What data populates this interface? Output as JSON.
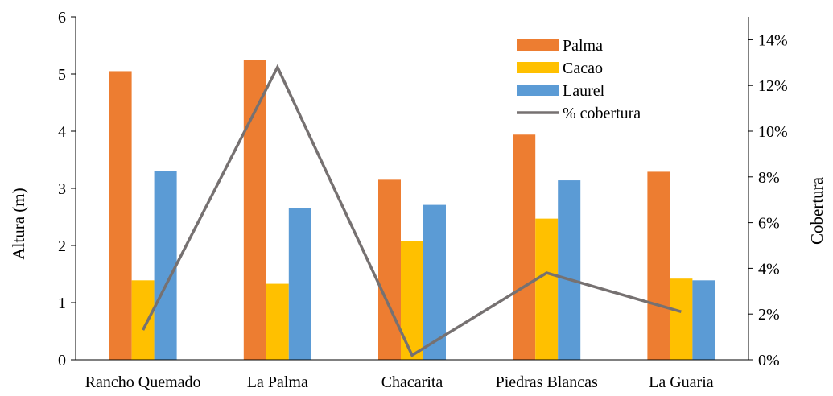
{
  "chart_data": {
    "type": "bar",
    "categories": [
      "Rancho Quemado",
      "La Palma",
      "Chacarita",
      "Piedras Blancas",
      "La Guaria"
    ],
    "series": [
      {
        "name": "Palma",
        "values": [
          5.05,
          5.25,
          3.15,
          3.94,
          3.29
        ],
        "color": "#ED7D31"
      },
      {
        "name": "Cacao",
        "values": [
          1.39,
          1.33,
          2.08,
          2.47,
          1.42
        ],
        "color": "#FFC000"
      },
      {
        "name": "Laurel",
        "values": [
          3.3,
          2.66,
          2.71,
          3.14,
          1.39
        ],
        "color": "#5B9BD5"
      }
    ],
    "line_series": {
      "name": "% cobertura",
      "values": [
        1.3,
        12.8,
        0.2,
        3.8,
        2.1
      ],
      "color": "#767171",
      "axis": "right"
    },
    "ylabel": "Altura (m)",
    "y2label": "Cobertura",
    "ylim": [
      0,
      6
    ],
    "y2lim": [
      0,
      15
    ],
    "yticks": [
      "0",
      "1",
      "2",
      "3",
      "4",
      "5",
      "6"
    ],
    "y2ticks": [
      "0%",
      "2%",
      "4%",
      "6%",
      "8%",
      "10%",
      "12%",
      "14%"
    ],
    "y2tick_values": [
      0,
      2,
      4,
      6,
      8,
      10,
      12,
      14
    ],
    "legend_position": "top-right",
    "grid": false
  }
}
